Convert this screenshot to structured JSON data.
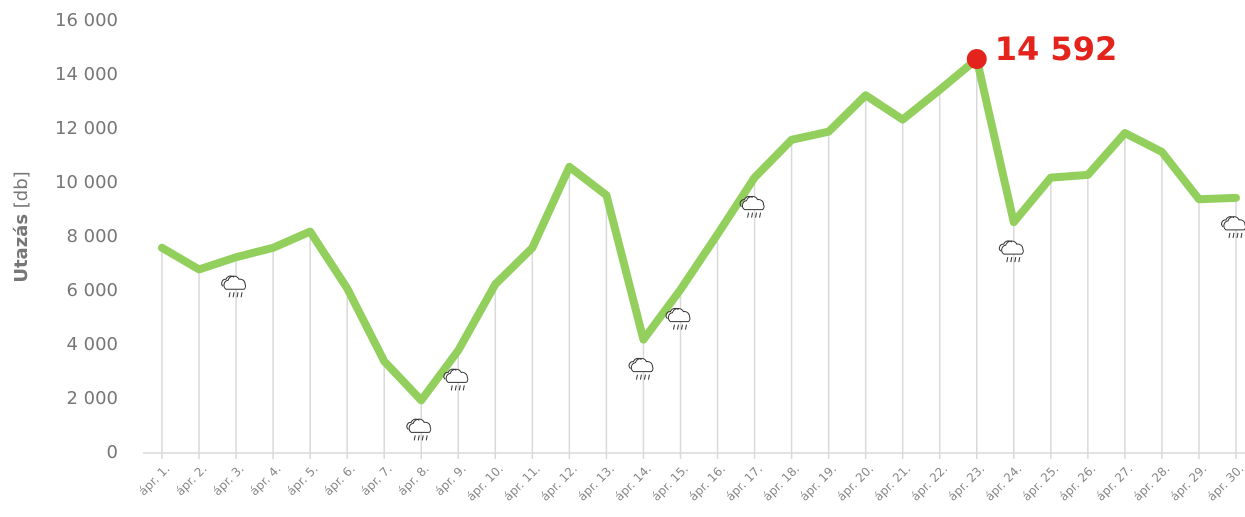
{
  "chart_data": {
    "type": "line",
    "ylabel_bold": "Utazás",
    "ylabel": "[db]",
    "categories": [
      "ápr. 1.",
      "ápr. 2.",
      "ápr. 3.",
      "ápr. 4.",
      "ápr. 5.",
      "ápr. 6.",
      "ápr. 7.",
      "ápr. 8.",
      "ápr. 9.",
      "ápr. 10.",
      "ápr. 11.",
      "ápr. 12.",
      "ápr. 13.",
      "ápr. 14.",
      "ápr. 15.",
      "ápr. 16.",
      "ápr. 17.",
      "ápr. 18.",
      "ápr. 19.",
      "ápr. 20.",
      "ápr. 21.",
      "ápr. 22.",
      "ápr. 23.",
      "ápr. 24.",
      "ápr. 25.",
      "ápr. 26.",
      "ápr. 27.",
      "ápr. 28.",
      "ápr. 29.",
      "ápr. 30."
    ],
    "values": [
      7600,
      6800,
      7250,
      7600,
      8200,
      6100,
      3400,
      1950,
      3800,
      6250,
      7600,
      10600,
      9550,
      4200,
      6050,
      8100,
      10200,
      11600,
      11900,
      13250,
      12350,
      13450,
      14592,
      8550,
      10200,
      10300,
      11850,
      11150,
      9400,
      9450
    ],
    "value_labels": [
      null,
      null,
      null,
      null,
      null,
      null,
      null,
      null,
      null,
      null,
      null,
      null,
      null,
      null,
      null,
      null,
      null,
      null,
      null,
      null,
      null,
      null,
      "14 592",
      null,
      null,
      null,
      null,
      null,
      null,
      null
    ],
    "color": "#92cf5c",
    "highlight_color": "#e3231c",
    "rain": [
      2,
      7,
      8,
      13,
      14,
      16,
      23,
      29
    ],
    "ylim": [
      0,
      16000
    ],
    "yticks": [
      0,
      {
        "value": 2000,
        "label": "2 000"
      },
      {
        "value": 4000,
        "label": "4 000"
      },
      {
        "value": 6000,
        "label": "6 000"
      },
      {
        "value": 8000,
        "label": "8 000"
      },
      {
        "value": 10000,
        "label": "10 000"
      },
      {
        "value": 12000,
        "label": "12 000"
      },
      {
        "value": 14000,
        "label": "14 000"
      },
      {
        "value": 16000,
        "label": "16 000"
      }
    ]
  }
}
